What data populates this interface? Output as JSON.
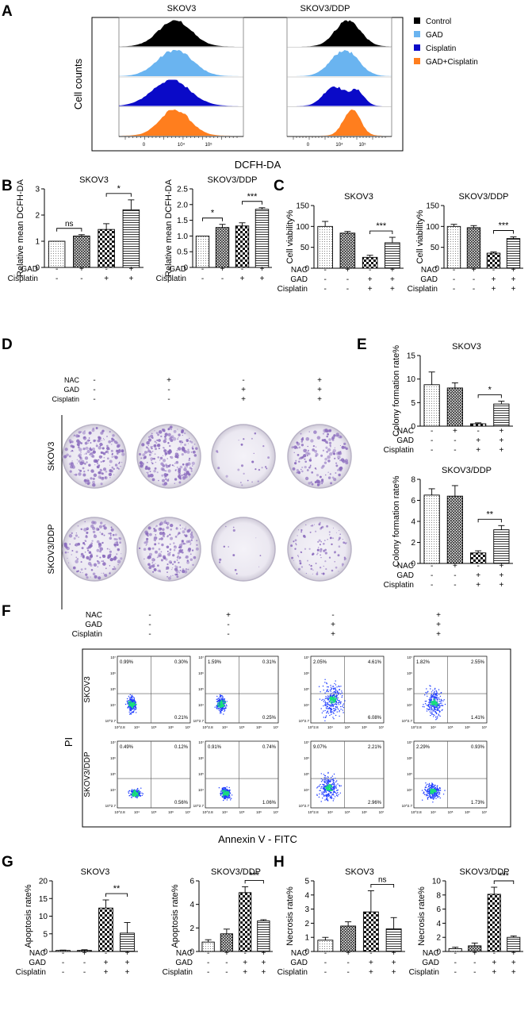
{
  "panel_letters": [
    "A",
    "B",
    "C",
    "D",
    "E",
    "F",
    "G",
    "H"
  ],
  "colors": {
    "control": "#000000",
    "gad": "#6ab4f0",
    "cisplatin": "#0a0ac8",
    "gad_cis": "#ff7e1e",
    "colony_purple": "#8a6bbd",
    "dot_blue": "#1e3cff",
    "dot_core": "#19e07a"
  },
  "panel_A": {
    "titles": [
      "SKOV3",
      "SKOV3/DDP"
    ],
    "ylabel": "Cell counts",
    "xlabel": "DCFH-DA",
    "legend": [
      "Control",
      "GAD",
      "Cisplatin",
      "GAD+Cisplatin"
    ],
    "ticks": [
      "0",
      "10⁴",
      "10⁵"
    ]
  },
  "chart_data": [
    {
      "id": "B1",
      "type": "bar",
      "title": "SKOV3",
      "ylabel": "Relative mean DCFH-DA",
      "ylim": [
        0,
        3
      ],
      "yticks": [
        "0",
        "1",
        "2",
        "3"
      ],
      "values": [
        1.0,
        1.2,
        1.45,
        2.2
      ],
      "errors": [
        0,
        0.05,
        0.22,
        0.38
      ],
      "factors": {
        "GAD": [
          "-",
          "+",
          "-",
          "+"
        ],
        "Cisplatin": [
          "-",
          "-",
          "+",
          "+"
        ]
      },
      "annotations": [
        {
          "from": 0,
          "to": 1,
          "label": "ns"
        },
        {
          "from": 2,
          "to": 3,
          "label": "*"
        }
      ]
    },
    {
      "id": "B2",
      "type": "bar",
      "title": "SKOV3/DDP",
      "ylabel": "Relative mean DCFH-DA",
      "ylim": [
        0,
        2.5
      ],
      "yticks": [
        "0",
        "0.5",
        "1.0",
        "1.5",
        "2.0",
        "2.5"
      ],
      "values": [
        1.0,
        1.27,
        1.32,
        1.85
      ],
      "errors": [
        0,
        0.1,
        0.1,
        0.05
      ],
      "factors": {
        "GAD": [
          "-",
          "+",
          "-",
          "+"
        ],
        "Cisplatin": [
          "-",
          "-",
          "+",
          "+"
        ]
      },
      "annotations": [
        {
          "from": 0,
          "to": 1,
          "label": "*"
        },
        {
          "from": 2,
          "to": 3,
          "label": "***"
        }
      ]
    },
    {
      "id": "C1",
      "type": "bar",
      "title": "SKOV3",
      "ylabel": "Cell viability%",
      "ylim": [
        0,
        150
      ],
      "yticks": [
        "0",
        "50",
        "100",
        "150"
      ],
      "values": [
        100,
        84,
        26,
        61
      ],
      "errors": [
        12,
        4,
        5,
        13
      ],
      "factors": {
        "NAC": [
          "-",
          "+",
          "-",
          "+"
        ],
        "GAD": [
          "-",
          "-",
          "+",
          "+"
        ],
        "Cisplatin": [
          "-",
          "-",
          "+",
          "+"
        ]
      },
      "annotations": [
        {
          "from": 2,
          "to": 3,
          "label": "***"
        }
      ]
    },
    {
      "id": "C2",
      "type": "bar",
      "title": "SKOV3/DDP",
      "ylabel": "Cell viability%",
      "ylim": [
        0,
        150
      ],
      "yticks": [
        "0",
        "50",
        "100",
        "150"
      ],
      "values": [
        100,
        97,
        36,
        71
      ],
      "errors": [
        5,
        5,
        3,
        4
      ],
      "factors": {
        "NAC": [
          "-",
          "+",
          "-",
          "+"
        ],
        "GAD": [
          "-",
          "-",
          "+",
          "+"
        ],
        "Cisplatin": [
          "-",
          "-",
          "+",
          "+"
        ]
      },
      "annotations": [
        {
          "from": 2,
          "to": 3,
          "label": "***"
        }
      ]
    },
    {
      "id": "E1",
      "type": "bar",
      "title": "SKOV3",
      "ylabel": "Colony formation rate%",
      "ylim": [
        0,
        15
      ],
      "yticks": [
        "0",
        "5",
        "10",
        "15"
      ],
      "values": [
        8.8,
        8.1,
        0.5,
        4.7
      ],
      "errors": [
        2.7,
        1.1,
        0.2,
        0.6
      ],
      "factors": {
        "NAC": [
          "-",
          "+",
          "-",
          "+"
        ],
        "GAD": [
          "-",
          "-",
          "+",
          "+"
        ],
        "Cisplatin": [
          "-",
          "-",
          "+",
          "+"
        ]
      },
      "annotations": [
        {
          "from": 2,
          "to": 3,
          "label": "*"
        }
      ]
    },
    {
      "id": "E2",
      "type": "bar",
      "title": "SKOV3/DDP",
      "ylabel": "Colony formation rate%",
      "ylim": [
        0,
        8
      ],
      "yticks": [
        "0",
        "2",
        "4",
        "6",
        "8"
      ],
      "values": [
        6.5,
        6.4,
        1.0,
        3.2
      ],
      "errors": [
        0.6,
        1.0,
        0.2,
        0.4
      ],
      "factors": {
        "NAC": [
          "-",
          "+",
          "-",
          "+"
        ],
        "GAD": [
          "-",
          "-",
          "+",
          "+"
        ],
        "Cisplatin": [
          "-",
          "-",
          "+",
          "+"
        ]
      },
      "annotations": [
        {
          "from": 2,
          "to": 3,
          "label": "**"
        }
      ]
    },
    {
      "id": "G1",
      "type": "bar",
      "title": "SKOV3",
      "ylabel": "Apoptosis rate%",
      "ylim": [
        0,
        20
      ],
      "yticks": [
        "0",
        "5",
        "10",
        "15",
        "20"
      ],
      "values": [
        0.3,
        0.3,
        12.3,
        5.2
      ],
      "errors": [
        0.1,
        0.2,
        2.3,
        3.0
      ],
      "factors": {
        "NAC": [
          "-",
          "+",
          "-",
          "+"
        ],
        "GAD": [
          "-",
          "-",
          "+",
          "+"
        ],
        "Cisplatin": [
          "-",
          "-",
          "+",
          "+"
        ]
      },
      "annotations": [
        {
          "from": 2,
          "to": 3,
          "label": "**"
        }
      ]
    },
    {
      "id": "G2",
      "type": "bar",
      "title": "SKOV3/DDP",
      "ylabel": "Apoptosis rate%",
      "ylim": [
        0,
        6
      ],
      "yticks": [
        "0",
        "2",
        "4",
        "6"
      ],
      "values": [
        0.8,
        1.5,
        5.0,
        2.6
      ],
      "errors": [
        0.2,
        0.4,
        0.5,
        0.1
      ],
      "factors": {
        "NAC": [
          "-",
          "+",
          "-",
          "+"
        ],
        "GAD": [
          "-",
          "-",
          "+",
          "+"
        ],
        "Cisplatin": [
          "-",
          "-",
          "+",
          "+"
        ]
      },
      "annotations": [
        {
          "from": 2,
          "to": 3,
          "label": "***"
        }
      ]
    },
    {
      "id": "H1",
      "type": "bar",
      "title": "SKOV3",
      "ylabel": "Necrosis rate%",
      "ylim": [
        0,
        5
      ],
      "yticks": [
        "0",
        "1",
        "2",
        "3",
        "4",
        "5"
      ],
      "values": [
        0.8,
        1.8,
        2.8,
        1.6
      ],
      "errors": [
        0.2,
        0.3,
        1.5,
        0.8
      ],
      "factors": {
        "NAC": [
          "-",
          "+",
          "-",
          "+"
        ],
        "GAD": [
          "-",
          "-",
          "+",
          "+"
        ],
        "Cisplatin": [
          "-",
          "-",
          "+",
          "+"
        ]
      },
      "annotations": [
        {
          "from": 2,
          "to": 3,
          "label": "ns"
        }
      ]
    },
    {
      "id": "H2",
      "type": "bar",
      "title": "SKOV3/DDP",
      "ylabel": "Necrosis rate%",
      "ylim": [
        0,
        10
      ],
      "yticks": [
        "0",
        "2",
        "4",
        "6",
        "8",
        "10"
      ],
      "values": [
        0.4,
        0.8,
        8.1,
        2.0
      ],
      "errors": [
        0.2,
        0.4,
        1.0,
        0.2
      ],
      "factors": {
        "NAC": [
          "-",
          "+",
          "-",
          "+"
        ],
        "GAD": [
          "-",
          "-",
          "+",
          "+"
        ],
        "Cisplatin": [
          "-",
          "-",
          "+",
          "+"
        ]
      },
      "annotations": [
        {
          "from": 2,
          "to": 3,
          "label": "***"
        }
      ]
    }
  ],
  "panel_D": {
    "factors": {
      "NAC": [
        "-",
        "+",
        "-",
        "+"
      ],
      "GAD": [
        "-",
        "-",
        "+",
        "+"
      ],
      "Cisplatin": [
        "-",
        "-",
        "+",
        "+"
      ]
    },
    "row_labels": [
      "SKOV3",
      "SKOV3/DDP"
    ],
    "colony_density": [
      [
        0.85,
        0.9,
        0.1,
        0.6
      ],
      [
        0.65,
        0.75,
        0.05,
        0.4
      ]
    ]
  },
  "panel_F": {
    "factors": {
      "NAC": [
        "-",
        "+",
        "-",
        "+"
      ],
      "GAD": [
        "-",
        "-",
        "+",
        "+"
      ],
      "Cisplatin": [
        "-",
        "-",
        "+",
        "+"
      ]
    },
    "row_labels": [
      "SKOV3",
      "SKOV3/DDP"
    ],
    "ylabel": "PI",
    "xlabel": "Annexin V - FITC",
    "yticks": [
      "10⁷",
      "10⁶",
      "10⁵",
      "10⁴",
      "10^2.7"
    ],
    "xticks": [
      "10^2.8",
      "10⁴",
      "10⁵",
      "10⁶",
      "10⁷"
    ],
    "quadrants": [
      [
        [
          "0.99%",
          "0.30%",
          "0.21%"
        ],
        [
          "1.59%",
          "0.31%",
          "0.25%"
        ],
        [
          "2.05%",
          "4.61%",
          "6.08%"
        ],
        [
          "1.82%",
          "2.55%",
          "1.41%"
        ]
      ],
      [
        [
          "0.49%",
          "0.12%",
          "0.56%"
        ],
        [
          "0.91%",
          "0.74%",
          "1.06%"
        ],
        [
          "9.07%",
          "2.21%",
          "2.96%"
        ],
        [
          "2.29%",
          "0.93%",
          "1.73%"
        ]
      ]
    ]
  }
}
